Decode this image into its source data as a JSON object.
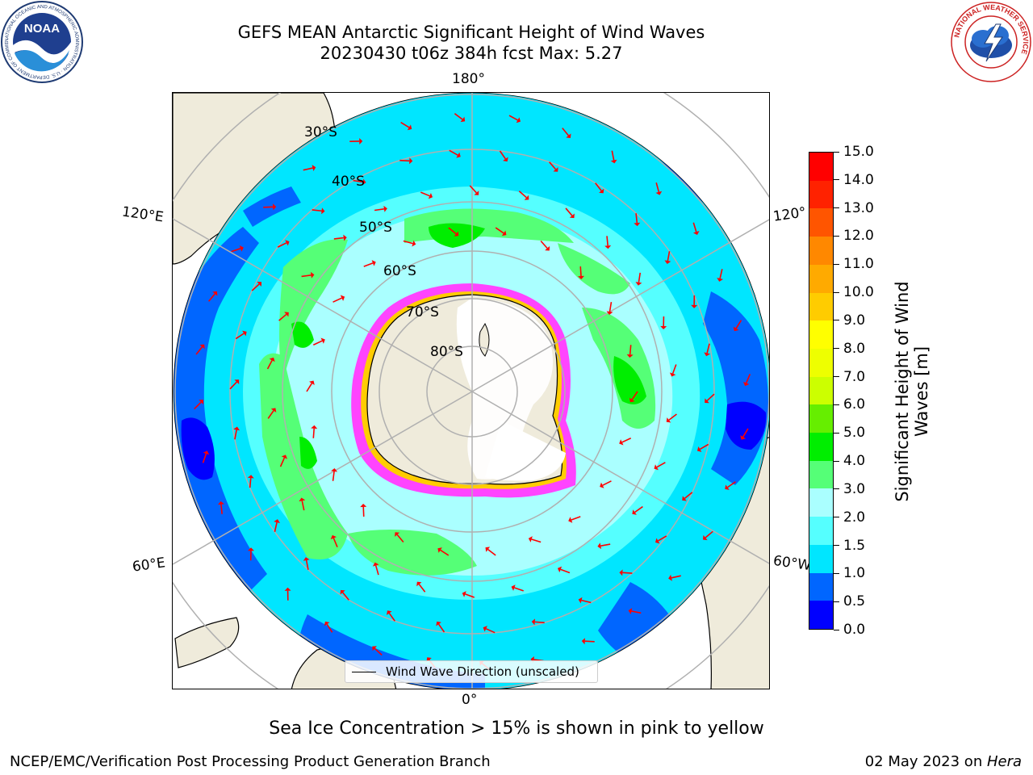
{
  "header": {
    "title_line1": "GEFS MEAN Antarctic Significant Height of Wind Waves",
    "title_line2": "20230430 t06z 384h fcst   Max: 5.27"
  },
  "logos": {
    "noaa": {
      "text": "NOAA",
      "ring_text": "NATIONAL OCEANIC AND ATMOSPHERIC ADMINISTRATION · U.S. DEPARTMENT OF COMMERCE"
    },
    "nws": {
      "ring_text": "NATIONAL WEATHER SERVICE"
    }
  },
  "map": {
    "projection": "south-polar-stereographic",
    "longitude_labels": {
      "top": "180°",
      "bottom": "0°",
      "left_upper": "120°E",
      "left_lower": "60°E",
      "right_upper": "120°",
      "right_lower": "60°W"
    },
    "latitude_labels": [
      "30°S",
      "40°S",
      "50°S",
      "60°S",
      "70°S",
      "80°S"
    ],
    "legend_label": "Wind Wave Direction (unscaled)",
    "arrow_color": "#ff0000",
    "land_color": "#efebdb",
    "ice_shelf_color": "#ffffff"
  },
  "colorbar": {
    "label_line1": "Significant Height of Wind",
    "label_line2": "Waves [m]",
    "ticks": [
      "0.0",
      "0.5",
      "1.0",
      "1.5",
      "2.0",
      "3.0",
      "4.0",
      "5.0",
      "6.0",
      "7.0",
      "8.0",
      "9.0",
      "10.0",
      "11.0",
      "12.0",
      "13.0",
      "14.0",
      "15.0"
    ],
    "colors": [
      "#0000ff",
      "#0066ff",
      "#00e6ff",
      "#55ffff",
      "#aaffff",
      "#55ff77",
      "#00ee00",
      "#66ee00",
      "#ccff00",
      "#eeff00",
      "#ffff00",
      "#ffcc00",
      "#ffaa00",
      "#ff8800",
      "#ff5500",
      "#ff2200",
      "#ff0000"
    ]
  },
  "caption": "Sea Ice Concentration > 15% is shown in pink to yellow",
  "footer": {
    "left": "NCEP/EMC/Verification Post Processing Product Generation Branch",
    "right_prefix": "02 May 2023 on ",
    "right_host": "Hera"
  }
}
